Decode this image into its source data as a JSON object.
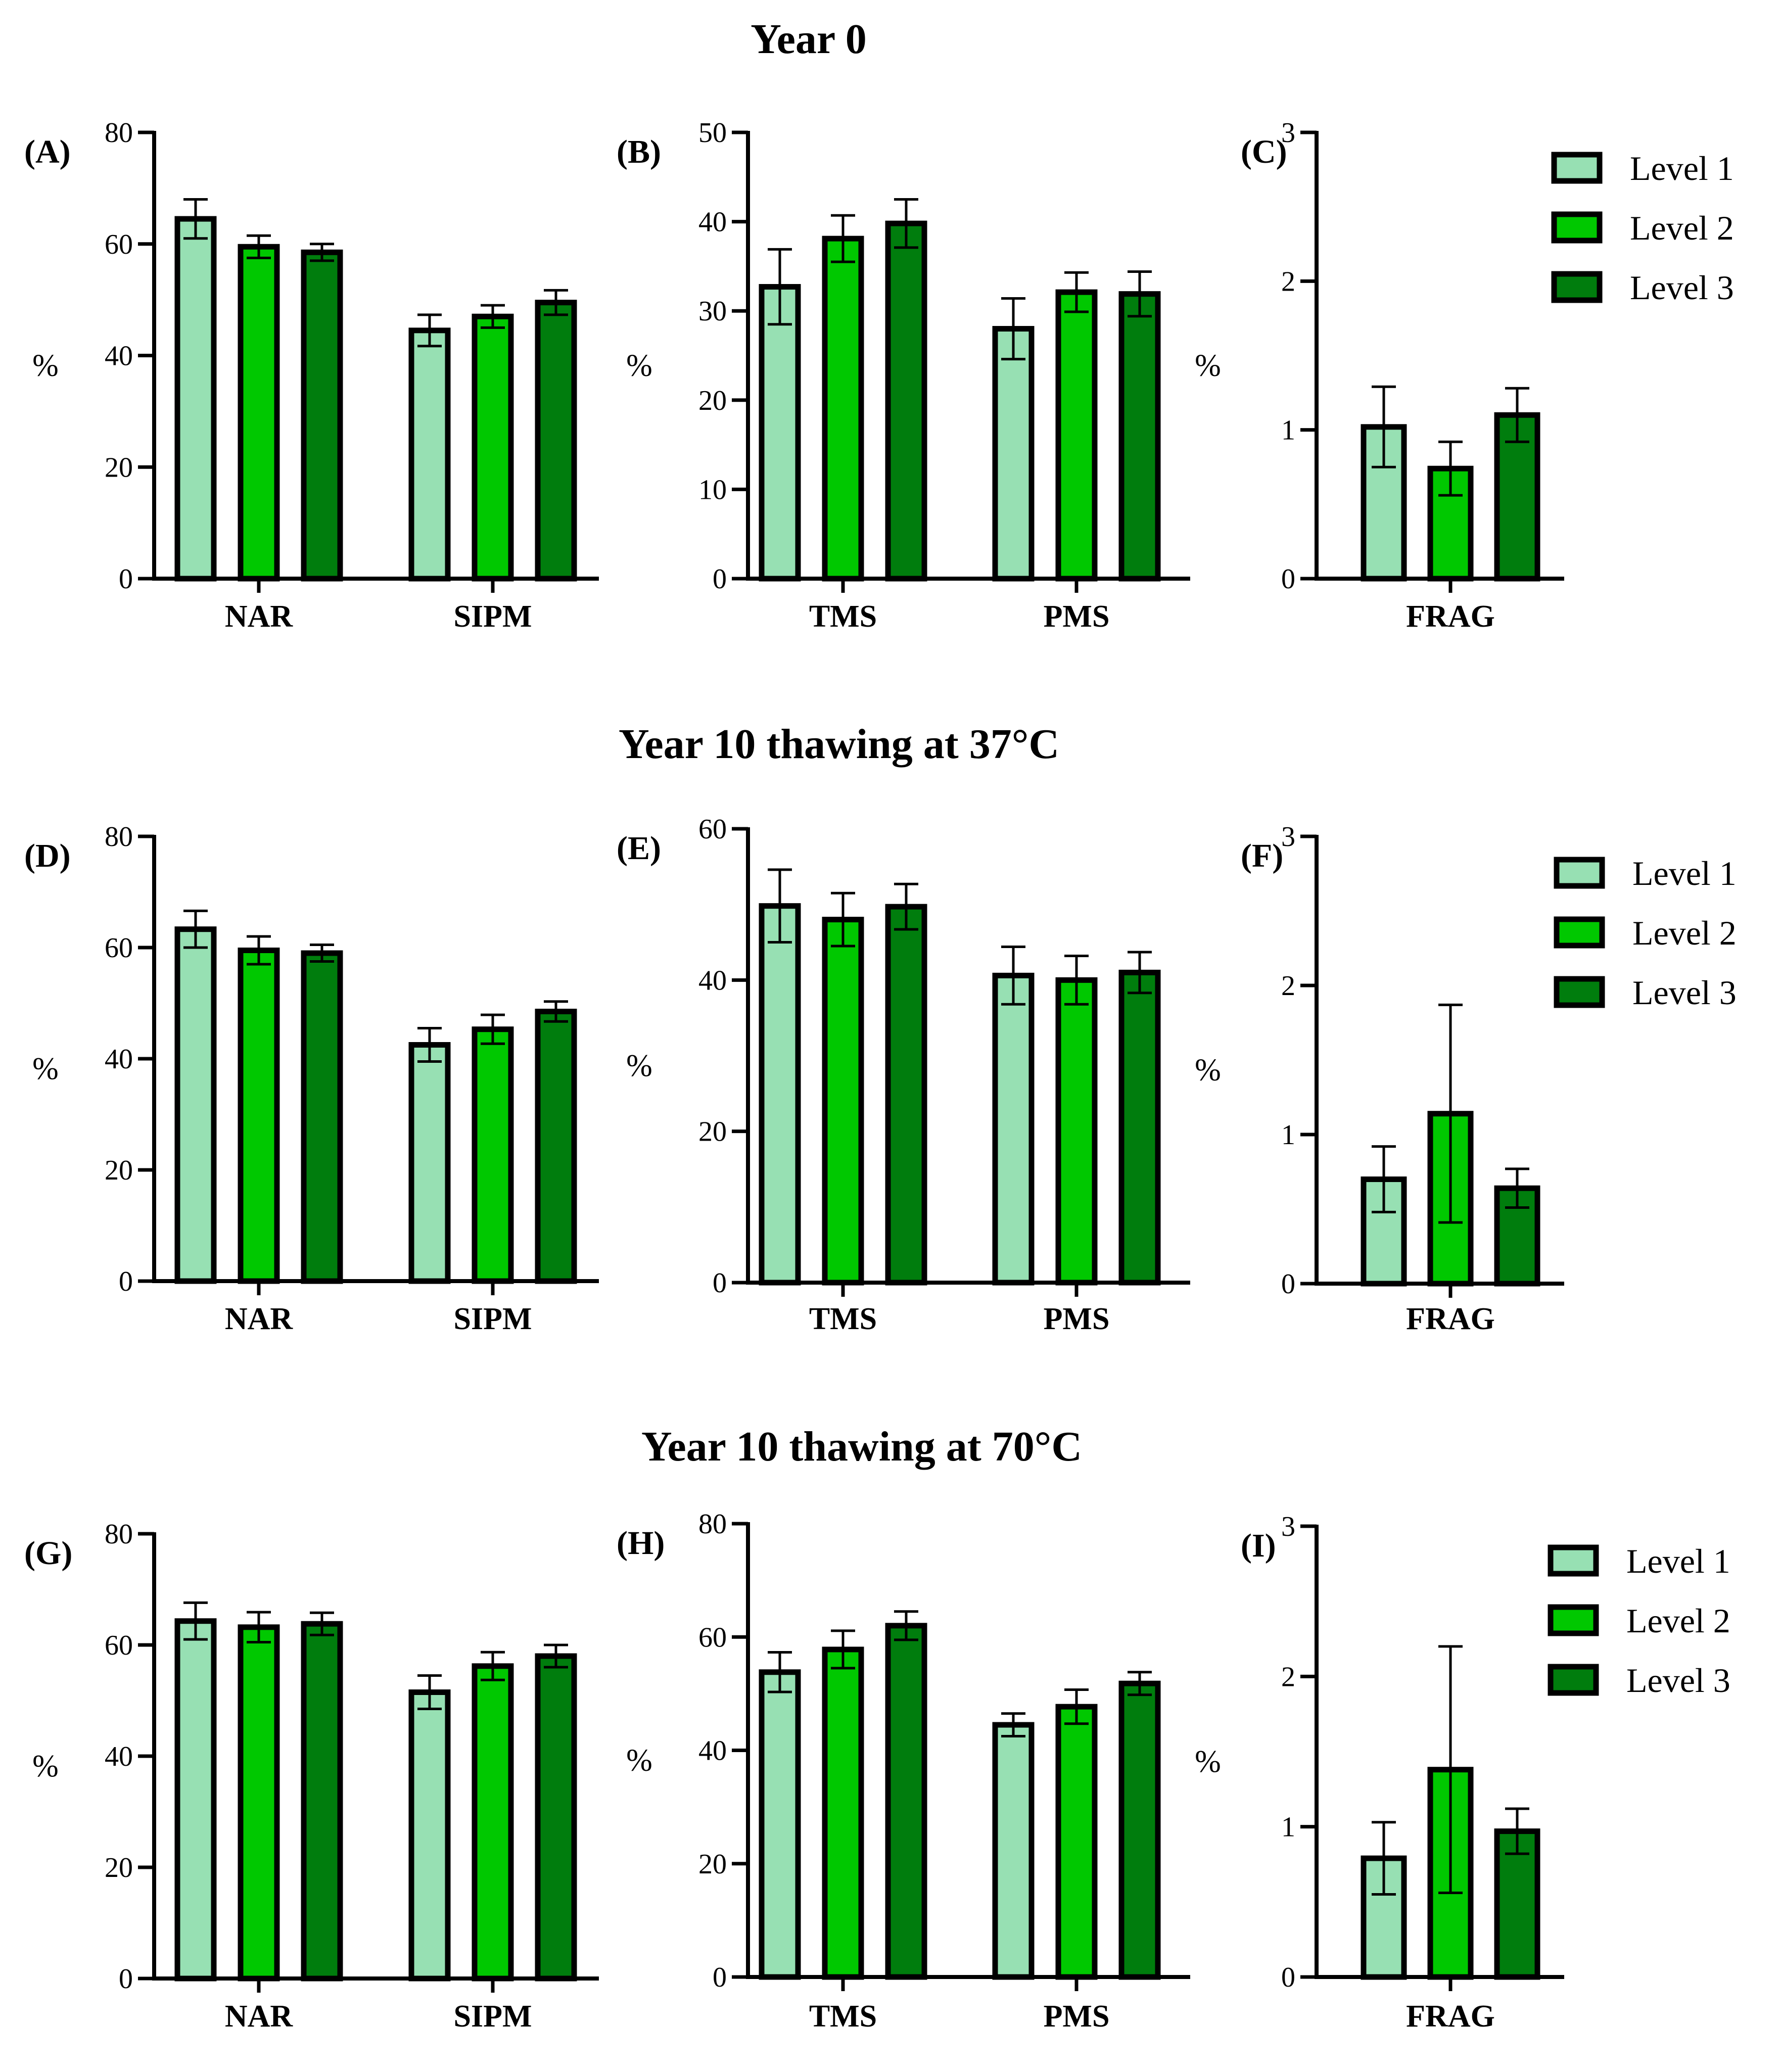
{
  "colors": {
    "level1": "#97E0B3",
    "level2": "#00C800",
    "level3": "#007D0D",
    "axis": "#000000"
  },
  "legend": [
    {
      "key": "level1",
      "label": "Level 1"
    },
    {
      "key": "level2",
      "label": "Level 2"
    },
    {
      "key": "level3",
      "label": "Level 3"
    }
  ],
  "rows": [
    {
      "title": "Year 0"
    },
    {
      "title": "Year 10 thawing at 37°C"
    },
    {
      "title": "Year 10 thawing at 70°C"
    }
  ],
  "chart_data": [
    {
      "id": "A",
      "label": "(A)",
      "type": "bar",
      "ylabel": "%",
      "ylim": [
        0,
        80
      ],
      "yticks": [
        0,
        20,
        40,
        60,
        80
      ],
      "categories": [
        "NAR",
        "SIPM"
      ],
      "series": [
        {
          "name": "Level 1",
          "values": [
            64.5,
            44.5
          ],
          "errors": [
            3.5,
            2.8
          ]
        },
        {
          "name": "Level 2",
          "values": [
            59.5,
            47.0
          ],
          "errors": [
            2.0,
            2.0
          ]
        },
        {
          "name": "Level 3",
          "values": [
            58.5,
            49.5
          ],
          "errors": [
            1.5,
            2.2
          ]
        }
      ]
    },
    {
      "id": "B",
      "label": "(B)",
      "type": "bar",
      "ylabel": "%",
      "ylim": [
        0,
        50
      ],
      "yticks": [
        0,
        10,
        20,
        30,
        40,
        50
      ],
      "categories": [
        "TMS",
        "PMS"
      ],
      "series": [
        {
          "name": "Level 1",
          "values": [
            32.7,
            28.0
          ],
          "errors": [
            4.2,
            3.4
          ]
        },
        {
          "name": "Level 2",
          "values": [
            38.1,
            32.1
          ],
          "errors": [
            2.6,
            2.2
          ]
        },
        {
          "name": "Level 3",
          "values": [
            39.8,
            31.9
          ],
          "errors": [
            2.7,
            2.5
          ]
        }
      ]
    },
    {
      "id": "C",
      "label": "(C)",
      "type": "bar",
      "ylabel": "%",
      "ylim": [
        0,
        3
      ],
      "yticks": [
        0,
        1,
        2,
        3
      ],
      "categories": [
        "FRAG"
      ],
      "series": [
        {
          "name": "Level 1",
          "values": [
            1.02
          ],
          "errors": [
            0.27
          ]
        },
        {
          "name": "Level 2",
          "values": [
            0.74
          ],
          "errors": [
            0.18
          ]
        },
        {
          "name": "Level 3",
          "values": [
            1.1
          ],
          "errors": [
            0.18
          ]
        }
      ]
    },
    {
      "id": "D",
      "label": "(D)",
      "type": "bar",
      "ylabel": "%",
      "ylim": [
        0,
        80
      ],
      "yticks": [
        0,
        20,
        40,
        60,
        80
      ],
      "categories": [
        "NAR",
        "SIPM"
      ],
      "series": [
        {
          "name": "Level 1",
          "values": [
            63.3,
            42.5
          ],
          "errors": [
            3.3,
            3.0
          ]
        },
        {
          "name": "Level 2",
          "values": [
            59.5,
            45.3
          ],
          "errors": [
            2.5,
            2.6
          ]
        },
        {
          "name": "Level 3",
          "values": [
            59.0,
            48.5
          ],
          "errors": [
            1.5,
            1.8
          ]
        }
      ]
    },
    {
      "id": "E",
      "label": "(E)",
      "type": "bar",
      "ylabel": "%",
      "ylim": [
        0,
        60
      ],
      "yticks": [
        0,
        20,
        40,
        60
      ],
      "categories": [
        "TMS",
        "PMS"
      ],
      "series": [
        {
          "name": "Level 1",
          "values": [
            49.8,
            40.6
          ],
          "errors": [
            4.8,
            3.8
          ]
        },
        {
          "name": "Level 2",
          "values": [
            48.0,
            40.0
          ],
          "errors": [
            3.5,
            3.2
          ]
        },
        {
          "name": "Level 3",
          "values": [
            49.7,
            41.0
          ],
          "errors": [
            3.0,
            2.7
          ]
        }
      ]
    },
    {
      "id": "F",
      "label": "(F)",
      "type": "bar",
      "ylabel": "%",
      "ylim": [
        0,
        3
      ],
      "yticks": [
        0,
        1,
        2,
        3
      ],
      "categories": [
        "FRAG"
      ],
      "series": [
        {
          "name": "Level 1",
          "values": [
            0.7
          ],
          "errors": [
            0.22
          ]
        },
        {
          "name": "Level 2",
          "values": [
            1.14
          ],
          "errors": [
            0.73
          ]
        },
        {
          "name": "Level 3",
          "values": [
            0.64
          ],
          "errors": [
            0.13
          ]
        }
      ]
    },
    {
      "id": "G",
      "label": "(G)",
      "type": "bar",
      "ylabel": "%",
      "ylim": [
        0,
        80
      ],
      "yticks": [
        0,
        20,
        40,
        60,
        80
      ],
      "categories": [
        "NAR",
        "SIPM"
      ],
      "series": [
        {
          "name": "Level 1",
          "values": [
            64.3,
            51.5
          ],
          "errors": [
            3.3,
            3.0
          ]
        },
        {
          "name": "Level 2",
          "values": [
            63.2,
            56.2
          ],
          "errors": [
            2.7,
            2.5
          ]
        },
        {
          "name": "Level 3",
          "values": [
            63.8,
            58.0
          ],
          "errors": [
            2.0,
            2.0
          ]
        }
      ]
    },
    {
      "id": "H",
      "label": "(H)",
      "type": "bar",
      "ylabel": "%",
      "ylim": [
        0,
        80
      ],
      "yticks": [
        0,
        20,
        40,
        60,
        80
      ],
      "categories": [
        "TMS",
        "PMS"
      ],
      "series": [
        {
          "name": "Level 1",
          "values": [
            53.8,
            44.5
          ],
          "errors": [
            3.5,
            2.0
          ]
        },
        {
          "name": "Level 2",
          "values": [
            57.8,
            47.7
          ],
          "errors": [
            3.3,
            3.0
          ]
        },
        {
          "name": "Level 3",
          "values": [
            62.0,
            51.8
          ],
          "errors": [
            2.5,
            2.0
          ]
        }
      ]
    },
    {
      "id": "I",
      "label": "(I)",
      "type": "bar",
      "ylabel": "%",
      "ylim": [
        0,
        3
      ],
      "yticks": [
        0,
        1,
        2,
        3
      ],
      "categories": [
        "FRAG"
      ],
      "series": [
        {
          "name": "Level 1",
          "values": [
            0.79
          ],
          "errors": [
            0.24
          ]
        },
        {
          "name": "Level 2",
          "values": [
            1.38
          ],
          "errors": [
            0.82
          ]
        },
        {
          "name": "Level 3",
          "values": [
            0.97
          ],
          "errors": [
            0.15
          ]
        }
      ]
    }
  ]
}
